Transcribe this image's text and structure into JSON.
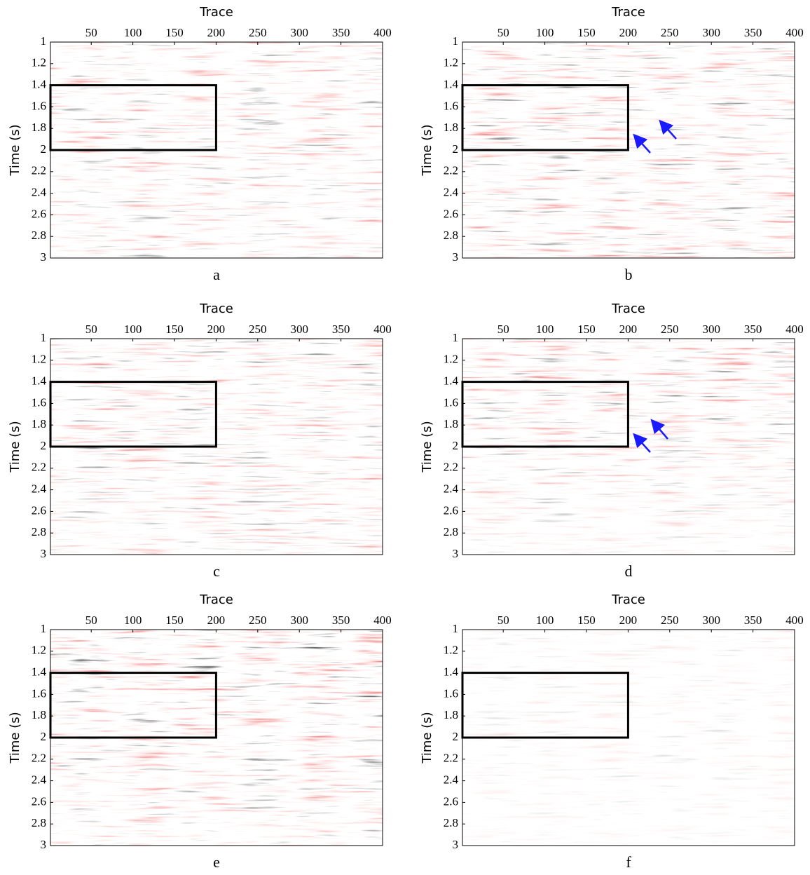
{
  "chart_data": [
    {
      "type": "image",
      "title": "Trace",
      "ylabel": "Time (s)",
      "caption": "a",
      "xlim": [
        1,
        400
      ],
      "xticks": [
        50,
        100,
        150,
        200,
        250,
        300,
        350,
        400
      ],
      "ylim": [
        1,
        3
      ],
      "y_reversed": true,
      "yticks": [
        1,
        1.2,
        1.4,
        1.6,
        1.8,
        2,
        2.2,
        2.4,
        2.6,
        2.8,
        3
      ],
      "box": {
        "x": [
          1,
          200
        ],
        "y": [
          1.4,
          2
        ]
      }
    },
    {
      "type": "image",
      "title": "Trace",
      "ylabel": "Time (s)",
      "caption": "b",
      "xlim": [
        1,
        400
      ],
      "xticks": [
        50,
        100,
        150,
        200,
        250,
        300,
        350,
        400
      ],
      "ylim": [
        1,
        3
      ],
      "y_reversed": true,
      "yticks": [
        1,
        1.2,
        1.4,
        1.6,
        1.8,
        2,
        2.2,
        2.4,
        2.6,
        2.8,
        3
      ],
      "box": {
        "x": [
          1,
          200
        ],
        "y": [
          1.4,
          2
        ]
      }
    },
    {
      "type": "image",
      "title": "Trace",
      "ylabel": "Time (s)",
      "caption": "c",
      "xlim": [
        1,
        400
      ],
      "xticks": [
        50,
        100,
        150,
        200,
        250,
        300,
        350,
        400
      ],
      "ylim": [
        1,
        3
      ],
      "y_reversed": true,
      "yticks": [
        1,
        1.2,
        1.4,
        1.6,
        1.8,
        2,
        2.2,
        2.4,
        2.6,
        2.8,
        3
      ],
      "box": {
        "x": [
          1,
          200
        ],
        "y": [
          1.4,
          2
        ]
      }
    },
    {
      "type": "image",
      "title": "Trace",
      "ylabel": "Time (s)",
      "caption": "d",
      "xlim": [
        1,
        400
      ],
      "xticks": [
        50,
        100,
        150,
        200,
        250,
        300,
        350,
        400
      ],
      "ylim": [
        1,
        3
      ],
      "y_reversed": true,
      "yticks": [
        1,
        1.2,
        1.4,
        1.6,
        1.8,
        2,
        2.2,
        2.4,
        2.6,
        2.8,
        3
      ],
      "box": {
        "x": [
          1,
          200
        ],
        "y": [
          1.4,
          2
        ]
      }
    },
    {
      "type": "image",
      "title": "Trace",
      "ylabel": "Time (s)",
      "caption": "e",
      "xlim": [
        1,
        400
      ],
      "xticks": [
        50,
        100,
        150,
        200,
        250,
        300,
        350,
        400
      ],
      "ylim": [
        1,
        3
      ],
      "y_reversed": true,
      "yticks": [
        1,
        1.2,
        1.4,
        1.6,
        1.8,
        2,
        2.2,
        2.4,
        2.6,
        2.8,
        3
      ],
      "box": {
        "x": [
          1,
          200
        ],
        "y": [
          1.4,
          2
        ]
      }
    },
    {
      "type": "image",
      "title": "Trace",
      "ylabel": "Time (s)",
      "caption": "f",
      "xlim": [
        1,
        400
      ],
      "xticks": [
        50,
        100,
        150,
        200,
        250,
        300,
        350,
        400
      ],
      "ylim": [
        1,
        3
      ],
      "y_reversed": true,
      "yticks": [
        1,
        1.2,
        1.4,
        1.6,
        1.8,
        2,
        2.2,
        2.4,
        2.6,
        2.8,
        3
      ],
      "box": {
        "x": [
          1,
          200
        ],
        "y": [
          1.4,
          2
        ]
      }
    }
  ]
}
